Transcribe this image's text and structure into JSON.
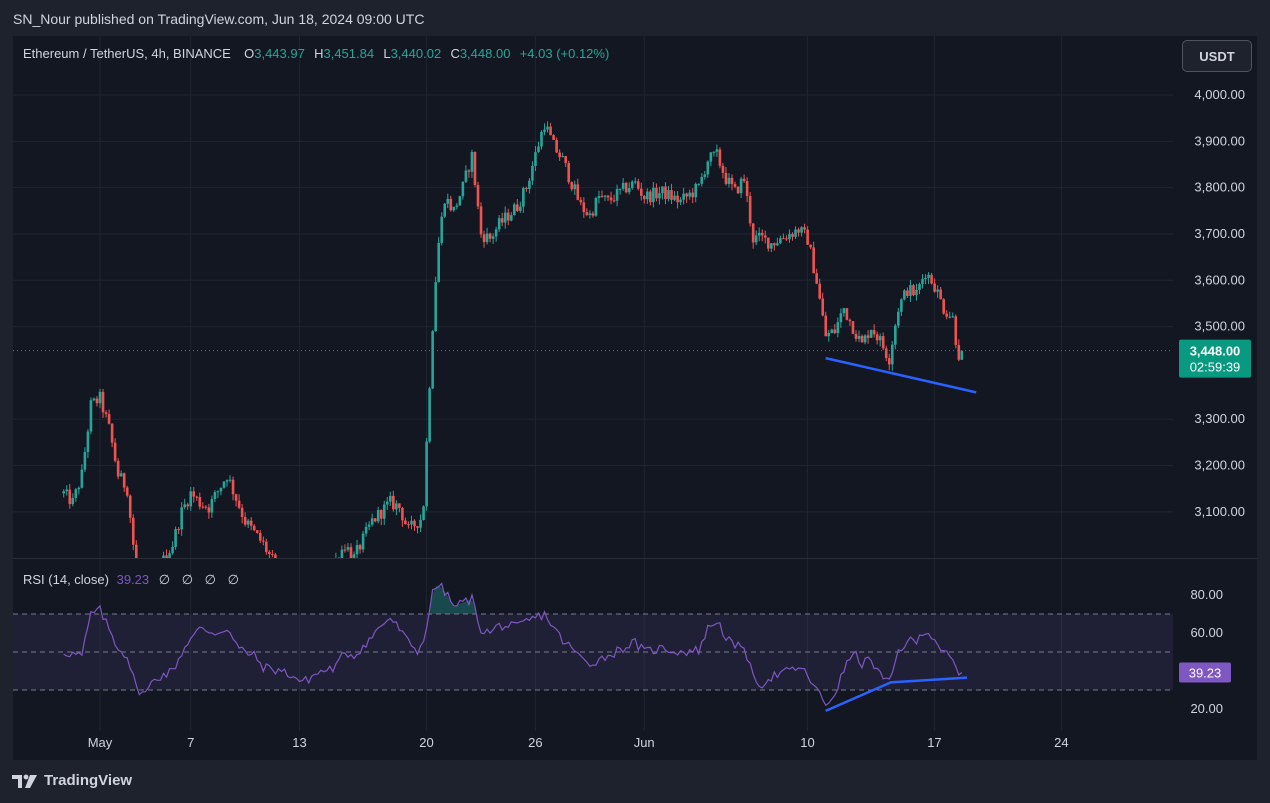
{
  "header": {
    "published": "SN_Nour published on TradingView.com, Jun 18, 2024 09:00 UTC"
  },
  "symbol": {
    "label": "Ethereum / TetherUS, 4h, BINANCE",
    "o_label": "O",
    "o": "3,443.97",
    "h_label": "H",
    "h": "3,451.84",
    "l_label": "L",
    "l": "3,440.02",
    "c_label": "C",
    "c": "3,448.00",
    "change": "+4.03 (+0.12%)"
  },
  "currency": "USDT",
  "price_tag": {
    "price": "3,448.00",
    "countdown": "02:59:39"
  },
  "price_axis": [
    {
      "v": 4000,
      "label": "4,000.00"
    },
    {
      "v": 3900,
      "label": "3,900.00"
    },
    {
      "v": 3800,
      "label": "3,800.00"
    },
    {
      "v": 3700,
      "label": "3,700.00"
    },
    {
      "v": 3600,
      "label": "3,600.00"
    },
    {
      "v": 3500,
      "label": "3,500.00"
    },
    {
      "v": 3300,
      "label": "3,300.00"
    },
    {
      "v": 3200,
      "label": "3,200.00"
    },
    {
      "v": 3100,
      "label": "3,100.00"
    }
  ],
  "rsi": {
    "label": "RSI (14, close)",
    "value": "39.23",
    "extras": "∅ ∅ ∅ ∅",
    "axis": [
      {
        "v": 80,
        "label": "80.00"
      },
      {
        "v": 60,
        "label": "60.00"
      },
      {
        "v": 20,
        "label": "20.00"
      }
    ],
    "upper_band": 70,
    "middle_band": 50,
    "lower_band": 30
  },
  "time_axis": [
    {
      "label": "May",
      "day": 2
    },
    {
      "label": "7",
      "day": 7
    },
    {
      "label": "13",
      "day": 13
    },
    {
      "label": "20",
      "day": 20
    },
    {
      "label": "26",
      "day": 26
    },
    {
      "label": "Jun",
      "day": 32
    },
    {
      "label": "10",
      "day": 41
    },
    {
      "label": "17",
      "day": 48
    },
    {
      "label": "24",
      "day": 55
    }
  ],
  "brand": "TradingView",
  "colors": {
    "up": "#26a69a",
    "down": "#ef5350",
    "rsi": "#7e57c2",
    "trendline": "#2962ff",
    "bg": "#131722",
    "frame": "#1e222d",
    "text": "#d1d4dc",
    "price_tag": "#089981",
    "rsi_tag": "#7e57c2"
  },
  "chart_data": [
    {
      "type": "candlestick",
      "title": "Ethereum / TetherUS, 4h, BINANCE",
      "timeframe": "4h",
      "x_unit": "day (0 = Apr 30, 2024)",
      "candle_step_days": 0.1667,
      "ylim": [
        3000,
        4080
      ],
      "close_path": [
        {
          "d": 0,
          "v": 3140
        },
        {
          "d": 0.5,
          "v": 3120
        },
        {
          "d": 1,
          "v": 3180
        },
        {
          "d": 1.5,
          "v": 3330
        },
        {
          "d": 2,
          "v": 3345
        },
        {
          "d": 2.5,
          "v": 3280
        },
        {
          "d": 3,
          "v": 3180
        },
        {
          "d": 3.5,
          "v": 3150
        },
        {
          "d": 4,
          "v": 2970
        },
        {
          "d": 5,
          "v": 2960
        },
        {
          "d": 6,
          "v": 3030
        },
        {
          "d": 6.5,
          "v": 3100
        },
        {
          "d": 7,
          "v": 3140
        },
        {
          "d": 7.5,
          "v": 3120
        },
        {
          "d": 8,
          "v": 3110
        },
        {
          "d": 9,
          "v": 3180
        },
        {
          "d": 9.5,
          "v": 3130
        },
        {
          "d": 10,
          "v": 3080
        },
        {
          "d": 11,
          "v": 3030
        },
        {
          "d": 12,
          "v": 2960
        },
        {
          "d": 13.5,
          "v": 2920
        },
        {
          "d": 14.5,
          "v": 2960
        },
        {
          "d": 15.5,
          "v": 3030
        },
        {
          "d": 16,
          "v": 3000
        },
        {
          "d": 17,
          "v": 3080
        },
        {
          "d": 18,
          "v": 3120
        },
        {
          "d": 18.5,
          "v": 3110
        },
        {
          "d": 19,
          "v": 3060
        },
        {
          "d": 19.8,
          "v": 3090
        },
        {
          "d": 20.3,
          "v": 3480
        },
        {
          "d": 20.6,
          "v": 3660
        },
        {
          "d": 21,
          "v": 3780
        },
        {
          "d": 21.5,
          "v": 3750
        },
        {
          "d": 22,
          "v": 3800
        },
        {
          "d": 22.5,
          "v": 3870
        },
        {
          "d": 23,
          "v": 3700
        },
        {
          "d": 23.5,
          "v": 3690
        },
        {
          "d": 24,
          "v": 3720
        },
        {
          "d": 25,
          "v": 3760
        },
        {
          "d": 25.5,
          "v": 3800
        },
        {
          "d": 26,
          "v": 3870
        },
        {
          "d": 26.5,
          "v": 3940
        },
        {
          "d": 27,
          "v": 3890
        },
        {
          "d": 27.5,
          "v": 3860
        },
        {
          "d": 28,
          "v": 3810
        },
        {
          "d": 28.5,
          "v": 3760
        },
        {
          "d": 29,
          "v": 3740
        },
        {
          "d": 29.5,
          "v": 3780
        },
        {
          "d": 30,
          "v": 3770
        },
        {
          "d": 31,
          "v": 3800
        },
        {
          "d": 31.5,
          "v": 3810
        },
        {
          "d": 32,
          "v": 3780
        },
        {
          "d": 33,
          "v": 3790
        },
        {
          "d": 34,
          "v": 3770
        },
        {
          "d": 35,
          "v": 3800
        },
        {
          "d": 35.5,
          "v": 3860
        },
        {
          "d": 36,
          "v": 3870
        },
        {
          "d": 36.5,
          "v": 3820
        },
        {
          "d": 37,
          "v": 3790
        },
        {
          "d": 37.5,
          "v": 3820
        },
        {
          "d": 38,
          "v": 3690
        },
        {
          "d": 38.5,
          "v": 3690
        },
        {
          "d": 39,
          "v": 3680
        },
        {
          "d": 40,
          "v": 3700
        },
        {
          "d": 40.5,
          "v": 3710
        },
        {
          "d": 41,
          "v": 3690
        },
        {
          "d": 41.5,
          "v": 3600
        },
        {
          "d": 42,
          "v": 3480
        },
        {
          "d": 42.5,
          "v": 3490
        },
        {
          "d": 43,
          "v": 3540
        },
        {
          "d": 43.5,
          "v": 3500
        },
        {
          "d": 44,
          "v": 3460
        },
        {
          "d": 44.5,
          "v": 3500
        },
        {
          "d": 45,
          "v": 3470
        },
        {
          "d": 45.5,
          "v": 3430
        },
        {
          "d": 46,
          "v": 3540
        },
        {
          "d": 46.5,
          "v": 3580
        },
        {
          "d": 47,
          "v": 3570
        },
        {
          "d": 47.5,
          "v": 3620
        },
        {
          "d": 48,
          "v": 3590
        },
        {
          "d": 48.5,
          "v": 3540
        },
        {
          "d": 49,
          "v": 3520
        },
        {
          "d": 49.3,
          "v": 3440
        },
        {
          "d": 49.6,
          "v": 3448
        }
      ],
      "y_ticks": [
        3100,
        3200,
        3300,
        3500,
        3600,
        3700,
        3800,
        3900,
        4000
      ],
      "last_price": 3448.0
    },
    {
      "type": "line",
      "title": "RSI (14, close)",
      "ylim": [
        15,
        92
      ],
      "bands": [
        30,
        50,
        70
      ],
      "series": [
        {
          "name": "RSI",
          "values": [
            {
              "d": 0,
              "v": 50
            },
            {
              "d": 1,
              "v": 48
            },
            {
              "d": 1.5,
              "v": 70
            },
            {
              "d": 2,
              "v": 72
            },
            {
              "d": 2.6,
              "v": 60
            },
            {
              "d": 3,
              "v": 52
            },
            {
              "d": 3.5,
              "v": 48
            },
            {
              "d": 4,
              "v": 31
            },
            {
              "d": 4.5,
              "v": 28
            },
            {
              "d": 5,
              "v": 36
            },
            {
              "d": 6,
              "v": 40
            },
            {
              "d": 6.8,
              "v": 55
            },
            {
              "d": 7.5,
              "v": 62
            },
            {
              "d": 8.5,
              "v": 60
            },
            {
              "d": 9,
              "v": 63
            },
            {
              "d": 9.6,
              "v": 52
            },
            {
              "d": 10.5,
              "v": 48
            },
            {
              "d": 11,
              "v": 42
            },
            {
              "d": 12,
              "v": 40
            },
            {
              "d": 12.5,
              "v": 38
            },
            {
              "d": 13.2,
              "v": 34
            },
            {
              "d": 14,
              "v": 39
            },
            {
              "d": 15,
              "v": 42
            },
            {
              "d": 15.5,
              "v": 50
            },
            {
              "d": 16,
              "v": 48
            },
            {
              "d": 17,
              "v": 58
            },
            {
              "d": 17.5,
              "v": 64
            },
            {
              "d": 18,
              "v": 68
            },
            {
              "d": 18.5,
              "v": 62
            },
            {
              "d": 19,
              "v": 55
            },
            {
              "d": 19.6,
              "v": 50
            },
            {
              "d": 20,
              "v": 63
            },
            {
              "d": 20.3,
              "v": 80
            },
            {
              "d": 20.6,
              "v": 86
            },
            {
              "d": 21,
              "v": 82
            },
            {
              "d": 21.5,
              "v": 74
            },
            {
              "d": 22,
              "v": 76
            },
            {
              "d": 22.5,
              "v": 78
            },
            {
              "d": 23,
              "v": 62
            },
            {
              "d": 23.5,
              "v": 60
            },
            {
              "d": 24,
              "v": 64
            },
            {
              "d": 25,
              "v": 63
            },
            {
              "d": 25.5,
              "v": 66
            },
            {
              "d": 26,
              "v": 68
            },
            {
              "d": 26.5,
              "v": 70
            },
            {
              "d": 27,
              "v": 63
            },
            {
              "d": 27.5,
              "v": 56
            },
            {
              "d": 28,
              "v": 52
            },
            {
              "d": 28.5,
              "v": 47
            },
            {
              "d": 29,
              "v": 44
            },
            {
              "d": 30,
              "v": 48
            },
            {
              "d": 31,
              "v": 53
            },
            {
              "d": 31.5,
              "v": 55
            },
            {
              "d": 32,
              "v": 50
            },
            {
              "d": 33,
              "v": 52
            },
            {
              "d": 34,
              "v": 50
            },
            {
              "d": 35,
              "v": 51
            },
            {
              "d": 35.5,
              "v": 62
            },
            {
              "d": 36,
              "v": 67
            },
            {
              "d": 36.5,
              "v": 58
            },
            {
              "d": 37,
              "v": 52
            },
            {
              "d": 37.5,
              "v": 54
            },
            {
              "d": 38,
              "v": 36
            },
            {
              "d": 38.5,
              "v": 33
            },
            {
              "d": 39,
              "v": 37
            },
            {
              "d": 40,
              "v": 40
            },
            {
              "d": 40.5,
              "v": 42
            },
            {
              "d": 41,
              "v": 38
            },
            {
              "d": 41.5,
              "v": 30
            },
            {
              "d": 42,
              "v": 22
            },
            {
              "d": 42.5,
              "v": 28
            },
            {
              "d": 43,
              "v": 40
            },
            {
              "d": 43.5,
              "v": 50
            },
            {
              "d": 44,
              "v": 44
            },
            {
              "d": 44.5,
              "v": 46
            },
            {
              "d": 45,
              "v": 38
            },
            {
              "d": 45.5,
              "v": 33
            },
            {
              "d": 46,
              "v": 50
            },
            {
              "d": 46.5,
              "v": 56
            },
            {
              "d": 47,
              "v": 55
            },
            {
              "d": 47.5,
              "v": 62
            },
            {
              "d": 48,
              "v": 57
            },
            {
              "d": 48.5,
              "v": 50
            },
            {
              "d": 49,
              "v": 45
            },
            {
              "d": 49.3,
              "v": 38
            },
            {
              "d": 49.6,
              "v": 39.23
            }
          ]
        }
      ],
      "last_value": 39.23
    }
  ],
  "annotations": {
    "price_trendline": [
      {
        "d": 42.0,
        "v": 3432
      },
      {
        "d": 50.3,
        "v": 3358
      }
    ],
    "rsi_trendline": [
      {
        "d": 42.0,
        "v": 19
      },
      {
        "d": 45.6,
        "v": 34
      },
      {
        "d": 49.8,
        "v": 36.5
      }
    ]
  }
}
